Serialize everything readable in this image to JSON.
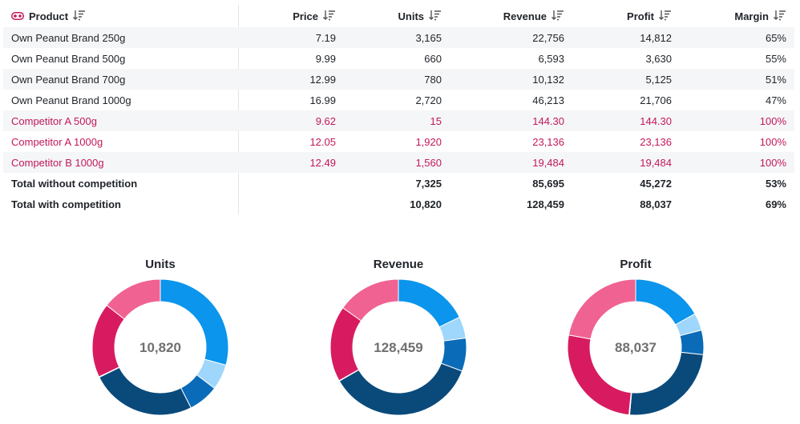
{
  "table": {
    "columns": {
      "product": "Product",
      "price": "Price",
      "units": "Units",
      "revenue": "Revenue",
      "profit": "Profit",
      "margin": "Margin"
    },
    "rows": [
      {
        "product": "Own Peanut Brand 250g",
        "price": "7.19",
        "units": "3,165",
        "revenue": "22,756",
        "profit": "14,812",
        "margin": "65%"
      },
      {
        "product": "Own Peanut Brand 500g",
        "price": "9.99",
        "units": "660",
        "revenue": "6,593",
        "profit": "3,630",
        "margin": "55%"
      },
      {
        "product": "Own Peanut Brand 700g",
        "price": "12.99",
        "units": "780",
        "revenue": "10,132",
        "profit": "5,125",
        "margin": "51%"
      },
      {
        "product": "Own Peanut Brand 1000g",
        "price": "16.99",
        "units": "2,720",
        "revenue": "46,213",
        "profit": "21,706",
        "margin": "47%"
      },
      {
        "product": "Competitor A 500g",
        "price": "9.62",
        "units": "15",
        "revenue": "144.30",
        "profit": "144.30",
        "margin": "100%"
      },
      {
        "product": "Competitor A 1000g",
        "price": "12.05",
        "units": "1,920",
        "revenue": "23,136",
        "profit": "23,136",
        "margin": "100%"
      },
      {
        "product": "Competitor B 1000g",
        "price": "12.49",
        "units": "1,560",
        "revenue": "19,484",
        "profit": "19,484",
        "margin": "100%"
      }
    ],
    "totals": [
      {
        "product": "Total without competition",
        "price": "",
        "units": "7,325",
        "revenue": "85,695",
        "profit": "45,272",
        "margin": "53%"
      },
      {
        "product": "Total with competition",
        "price": "",
        "units": "10,820",
        "revenue": "128,459",
        "profit": "88,037",
        "margin": "69%"
      }
    ],
    "competitor_color": "#c2185b"
  },
  "chart_data": [
    {
      "type": "pie",
      "title": "Units",
      "center_label": "10,820",
      "categories": [
        "Own Peanut Brand 250g",
        "Own Peanut Brand 500g",
        "Own Peanut Brand 700g",
        "Own Peanut Brand 1000g",
        "Competitor A 500g",
        "Competitor A 1000g",
        "Competitor B 1000g"
      ],
      "values": [
        3165,
        660,
        780,
        2720,
        15,
        1920,
        1560
      ],
      "colors": [
        "#0b95ec",
        "#9fd6fb",
        "#0a6bb8",
        "#0a4a7b",
        "#b0124f",
        "#d81b60",
        "#f06292"
      ]
    },
    {
      "type": "pie",
      "title": "Revenue",
      "center_label": "128,459",
      "categories": [
        "Own Peanut Brand 250g",
        "Own Peanut Brand 500g",
        "Own Peanut Brand 700g",
        "Own Peanut Brand 1000g",
        "Competitor A 500g",
        "Competitor A 1000g",
        "Competitor B 1000g"
      ],
      "values": [
        22756,
        6593,
        10132,
        46213,
        144.3,
        23136,
        19484
      ],
      "colors": [
        "#0b95ec",
        "#9fd6fb",
        "#0a6bb8",
        "#0a4a7b",
        "#b0124f",
        "#d81b60",
        "#f06292"
      ]
    },
    {
      "type": "pie",
      "title": "Profit",
      "center_label": "88,037",
      "categories": [
        "Own Peanut Brand 250g",
        "Own Peanut Brand 500g",
        "Own Peanut Brand 700g",
        "Own Peanut Brand 1000g",
        "Competitor A 500g",
        "Competitor A 1000g",
        "Competitor B 1000g"
      ],
      "values": [
        14812,
        3630,
        5125,
        21706,
        144.3,
        23136,
        19484
      ],
      "colors": [
        "#0b95ec",
        "#9fd6fb",
        "#0a6bb8",
        "#0a4a7b",
        "#b0124f",
        "#d81b60",
        "#f06292"
      ]
    }
  ]
}
